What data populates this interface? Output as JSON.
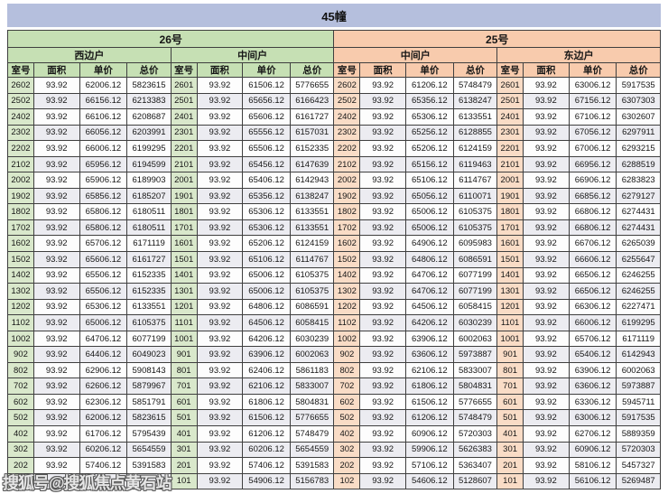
{
  "title": "45幢",
  "watermark": "搜狐号@搜狐焦点黄石站",
  "colors": {
    "title_bar": "#b5bfdd",
    "unit26_header": "#c6e0b4",
    "unit25_header": "#f8cbad",
    "room_cell_green": "#d9e8cb",
    "room_cell_peach": "#f9dcc6",
    "stripe_row": "#ececf1",
    "border": "#3f3f3f"
  },
  "table": {
    "groups": [
      {
        "label": "26号",
        "subgroups": [
          "西边户",
          "中间户"
        ]
      },
      {
        "label": "25号",
        "subgroups": [
          "中间户",
          "东边户"
        ]
      }
    ],
    "column_headers": [
      "室号",
      "面积",
      "单价",
      "总价"
    ],
    "obscured_note": "bottom-left row partially hidden by watermark; only fragment '743' visible",
    "rows": [
      [
        "2602",
        "93.92",
        "62006.12",
        "5823615",
        "2601",
        "93.92",
        "61506.12",
        "5776655",
        "2602",
        "93.92",
        "61206.12",
        "5748479",
        "2601",
        "93.92",
        "63006.12",
        "5917535"
      ],
      [
        "2502",
        "93.92",
        "66156.12",
        "6213383",
        "2501",
        "93.92",
        "65656.12",
        "6166423",
        "2502",
        "93.92",
        "65356.12",
        "6138247",
        "2501",
        "93.92",
        "67156.12",
        "6307303"
      ],
      [
        "2402",
        "93.92",
        "66106.12",
        "6208687",
        "2401",
        "93.92",
        "65606.12",
        "6161727",
        "2402",
        "93.92",
        "65306.12",
        "6133551",
        "2401",
        "93.92",
        "67106.12",
        "6302607"
      ],
      [
        "2302",
        "93.92",
        "66056.12",
        "6203991",
        "2301",
        "93.92",
        "65556.12",
        "6157031",
        "2302",
        "93.92",
        "65256.12",
        "6128855",
        "2301",
        "93.92",
        "67056.12",
        "6297911"
      ],
      [
        "2202",
        "93.92",
        "66006.12",
        "6199295",
        "2201",
        "93.92",
        "65506.12",
        "6152335",
        "2202",
        "93.92",
        "65206.12",
        "6124159",
        "2201",
        "93.92",
        "67006.12",
        "6293215"
      ],
      [
        "2102",
        "93.92",
        "65956.12",
        "6194599",
        "2101",
        "93.92",
        "65456.12",
        "6147639",
        "2102",
        "93.92",
        "65156.12",
        "6119463",
        "2101",
        "93.92",
        "66956.12",
        "6288519"
      ],
      [
        "2002",
        "93.92",
        "65906.12",
        "6189903",
        "2001",
        "93.92",
        "65406.12",
        "6142943",
        "2002",
        "93.92",
        "65106.12",
        "6114767",
        "2001",
        "93.92",
        "66906.12",
        "6283823"
      ],
      [
        "1902",
        "93.92",
        "65856.12",
        "6185207",
        "1901",
        "93.92",
        "65356.12",
        "6138247",
        "1902",
        "93.92",
        "65056.12",
        "6110071",
        "1901",
        "93.92",
        "66856.12",
        "6279127"
      ],
      [
        "1802",
        "93.92",
        "65806.12",
        "6180511",
        "1801",
        "93.92",
        "65306.12",
        "6133551",
        "1802",
        "93.92",
        "65006.12",
        "6105375",
        "1801",
        "93.92",
        "66806.12",
        "6274431"
      ],
      [
        "1702",
        "93.92",
        "65806.12",
        "6180511",
        "1701",
        "93.92",
        "65306.12",
        "6133551",
        "1702",
        "93.92",
        "65006.12",
        "6105375",
        "1701",
        "93.92",
        "66806.12",
        "6274431"
      ],
      [
        "1602",
        "93.92",
        "65706.12",
        "6171119",
        "1601",
        "93.92",
        "65206.12",
        "6124159",
        "1602",
        "93.92",
        "64906.12",
        "6095983",
        "1601",
        "93.92",
        "66706.12",
        "6265039"
      ],
      [
        "1502",
        "93.92",
        "65606.12",
        "6161727",
        "1501",
        "93.92",
        "65106.12",
        "6114767",
        "1502",
        "93.92",
        "64806.12",
        "6086591",
        "1501",
        "93.92",
        "66606.12",
        "6255647"
      ],
      [
        "1402",
        "93.92",
        "65506.12",
        "6152335",
        "1401",
        "93.92",
        "65006.12",
        "6105375",
        "1402",
        "93.92",
        "64706.12",
        "6077199",
        "1401",
        "93.92",
        "66506.12",
        "6246255"
      ],
      [
        "1302",
        "93.92",
        "65506.12",
        "6152335",
        "1301",
        "93.92",
        "65006.12",
        "6105375",
        "1302",
        "93.92",
        "64706.12",
        "6077199",
        "1301",
        "93.92",
        "66506.12",
        "6246255"
      ],
      [
        "1202",
        "93.92",
        "65306.12",
        "6133551",
        "1201",
        "93.92",
        "64806.12",
        "6086591",
        "1202",
        "93.92",
        "64506.12",
        "6058415",
        "1201",
        "93.92",
        "66306.12",
        "6227471"
      ],
      [
        "1102",
        "93.92",
        "65006.12",
        "6105375",
        "1101",
        "93.92",
        "64506.12",
        "6058415",
        "1102",
        "93.92",
        "64206.12",
        "6030239",
        "1101",
        "93.92",
        "66006.12",
        "6199295"
      ],
      [
        "1002",
        "93.92",
        "64706.12",
        "6077199",
        "1001",
        "93.92",
        "64206.12",
        "6030239",
        "1002",
        "93.92",
        "63906.12",
        "6002063",
        "1001",
        "93.92",
        "65706.12",
        "6171119"
      ],
      [
        "902",
        "93.92",
        "64406.12",
        "6049023",
        "901",
        "93.92",
        "63906.12",
        "6002063",
        "902",
        "93.92",
        "63606.12",
        "5973887",
        "901",
        "93.92",
        "65406.12",
        "6142943"
      ],
      [
        "802",
        "93.92",
        "62906.12",
        "5908143",
        "801",
        "93.92",
        "62406.12",
        "5861183",
        "802",
        "93.92",
        "62106.12",
        "5833007",
        "801",
        "93.92",
        "63906.12",
        "6002063"
      ],
      [
        "702",
        "93.92",
        "62606.12",
        "5879967",
        "701",
        "93.92",
        "62106.12",
        "5833007",
        "702",
        "93.92",
        "61806.12",
        "5804831",
        "701",
        "93.92",
        "63606.12",
        "5973887"
      ],
      [
        "602",
        "93.92",
        "62306.12",
        "5851791",
        "601",
        "93.92",
        "61806.12",
        "5804831",
        "602",
        "93.92",
        "61506.12",
        "5776655",
        "601",
        "93.92",
        "63306.12",
        "5945711"
      ],
      [
        "502",
        "93.92",
        "62006.12",
        "5823615",
        "501",
        "93.92",
        "61506.12",
        "5776655",
        "502",
        "93.92",
        "61206.12",
        "5748479",
        "501",
        "93.92",
        "63006.12",
        "5917535"
      ],
      [
        "402",
        "93.92",
        "61706.12",
        "5795439",
        "401",
        "93.92",
        "61206.12",
        "5748479",
        "402",
        "93.92",
        "60906.12",
        "5720303",
        "401",
        "93.92",
        "62706.12",
        "5889359"
      ],
      [
        "302",
        "93.92",
        "60206.12",
        "5654559",
        "301",
        "93.92",
        "60206.12",
        "5654559",
        "302",
        "93.92",
        "59906.12",
        "5626383",
        "301",
        "93.92",
        "60906.12",
        "5720303"
      ],
      [
        "202",
        "93.92",
        "57406.12",
        "5391583",
        "201",
        "93.92",
        "57406.12",
        "5391583",
        "202",
        "93.92",
        "57106.12",
        "5363407",
        "201",
        "93.92",
        "58106.12",
        "5457327"
      ],
      [
        "",
        "",
        "",
        "743",
        "101",
        "93.92",
        "54906.12",
        "5156783",
        "102",
        "93.92",
        "54606.12",
        "5128607",
        "101",
        "93.92",
        "56106.12",
        "5269487"
      ]
    ]
  }
}
